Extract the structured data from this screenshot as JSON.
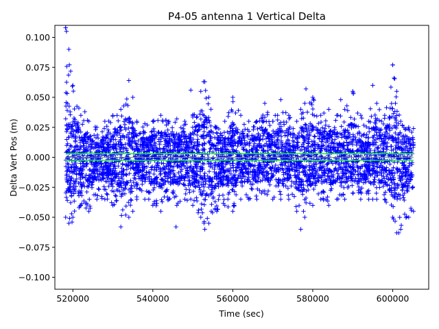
{
  "chart_data": {
    "type": "scatter",
    "title": "P4-05 antenna 1 Vertical Delta",
    "xlabel": "Time (sec)",
    "ylabel": "Delta Vert Pos (m)",
    "xlim": [
      515500,
      609000
    ],
    "ylim": [
      -0.11,
      0.11
    ],
    "xticks": [
      520000,
      540000,
      560000,
      580000,
      600000
    ],
    "xtick_labels": [
      "520000",
      "540000",
      "560000",
      "580000",
      "600000"
    ],
    "yticks": [
      -0.1,
      -0.075,
      -0.05,
      -0.025,
      0.0,
      0.025,
      0.05,
      0.075,
      0.1
    ],
    "ytick_labels": [
      "−0.100",
      "−0.075",
      "−0.050",
      "−0.025",
      "0.000",
      "0.025",
      "0.050",
      "0.075",
      "0.100"
    ],
    "grid": false,
    "legend": "none",
    "series": [
      {
        "marker": "+",
        "color": "#0000ff",
        "x_range": [
          518200,
          605200
        ],
        "envelope": {
          "x": [
            518200,
            519000,
            520000,
            522000,
            524000,
            526000,
            528000,
            530000,
            532000,
            534000,
            535000,
            536000,
            538000,
            540000,
            542000,
            544000,
            546000,
            548000,
            550000,
            552000,
            553000,
            554000,
            556000,
            558000,
            560000,
            562000,
            564000,
            566000,
            568000,
            570000,
            572000,
            574000,
            576000,
            577000,
            578000,
            580000,
            582000,
            584000,
            586000,
            588000,
            590000,
            592000,
            594000,
            595000,
            596000,
            598000,
            600000,
            601000,
            602000,
            604000,
            605200
          ],
          "upper": [
            0.108,
            0.09,
            0.06,
            0.035,
            0.03,
            0.025,
            0.03,
            0.035,
            0.04,
            0.064,
            0.05,
            0.03,
            0.028,
            0.03,
            0.035,
            0.03,
            0.032,
            0.03,
            0.035,
            0.055,
            0.063,
            0.05,
            0.025,
            0.03,
            0.05,
            0.035,
            0.03,
            0.03,
            0.045,
            0.03,
            0.048,
            0.035,
            0.03,
            0.04,
            0.045,
            0.05,
            0.035,
            0.04,
            0.035,
            0.04,
            0.055,
            0.035,
            0.03,
            0.06,
            0.045,
            0.035,
            0.077,
            0.055,
            0.03,
            0.025,
            0.024
          ],
          "lower": [
            -0.05,
            -0.055,
            -0.05,
            -0.04,
            -0.045,
            -0.035,
            -0.035,
            -0.04,
            -0.058,
            -0.05,
            -0.045,
            -0.035,
            -0.035,
            -0.04,
            -0.045,
            -0.035,
            -0.04,
            -0.035,
            -0.04,
            -0.05,
            -0.06,
            -0.055,
            -0.045,
            -0.04,
            -0.045,
            -0.035,
            -0.035,
            -0.035,
            -0.03,
            -0.035,
            -0.035,
            -0.035,
            -0.045,
            -0.06,
            -0.05,
            -0.04,
            -0.035,
            -0.04,
            -0.035,
            -0.035,
            -0.03,
            -0.035,
            -0.035,
            -0.035,
            -0.035,
            -0.035,
            -0.05,
            -0.063,
            -0.06,
            -0.05,
            -0.045
          ]
        },
        "outliers": [
          {
            "x": 518200,
            "y": 0.108
          },
          {
            "x": 518400,
            "y": 0.105
          },
          {
            "x": 521500,
            "y": 0.041
          },
          {
            "x": 523000,
            "y": 0.038
          },
          {
            "x": 549500,
            "y": 0.056
          },
          {
            "x": 552700,
            "y": 0.063
          },
          {
            "x": 545800,
            "y": -0.058
          },
          {
            "x": 578300,
            "y": 0.057
          },
          {
            "x": 587000,
            "y": 0.048
          },
          {
            "x": 600000,
            "y": 0.077
          },
          {
            "x": 601500,
            "y": -0.063
          },
          {
            "x": 519800,
            "y": -0.054
          }
        ]
      },
      {
        "type": "line",
        "color": "#00ff00",
        "values_y": 0.003,
        "x_range": [
          518200,
          605200
        ]
      },
      {
        "type": "line",
        "color": "#00ff00",
        "values_y": -0.0025,
        "x_range": [
          518200,
          605200
        ]
      },
      {
        "type": "line",
        "color": "#7f7f7f",
        "values_y": 0.0,
        "x_range": [
          518200,
          605200
        ]
      }
    ]
  }
}
